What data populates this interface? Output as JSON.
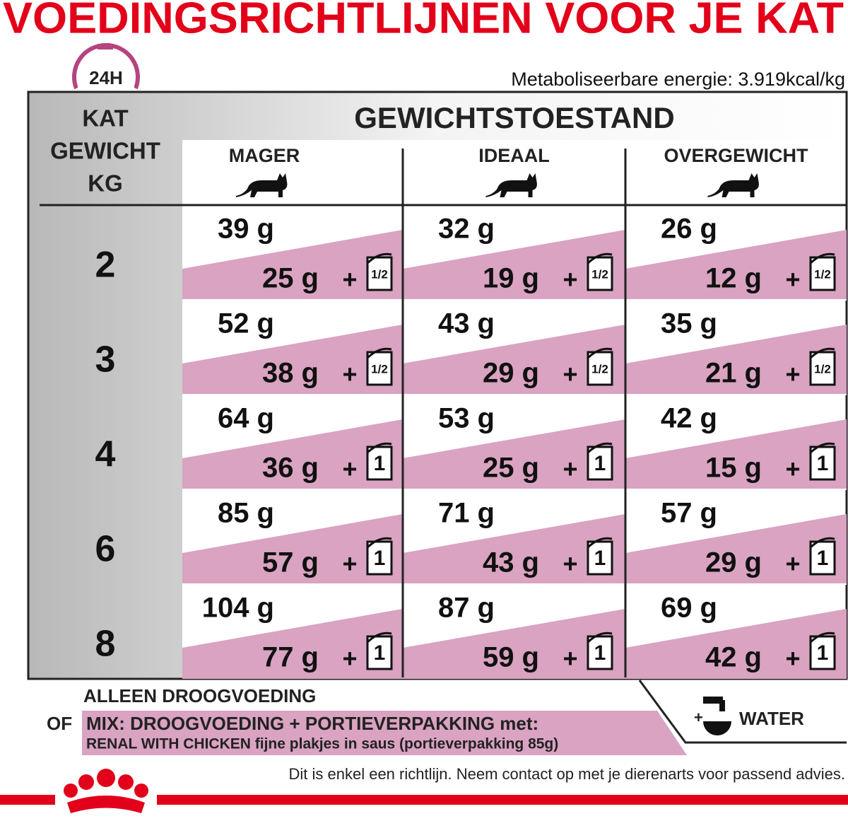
{
  "title": "VOEDINGSRICHTLIJNEN VOOR JE KAT",
  "badge": "24H",
  "energy": "Metaboliseerbare energie: 3.919kcal/kg",
  "table": {
    "weight_header": [
      "KAT",
      "GEWICHT",
      "KG"
    ],
    "group_header": "GEWICHTSTOESTAND",
    "columns": [
      "MAGER",
      "IDEAAL",
      "OVERGEWICHT"
    ],
    "plus": "+",
    "rows": [
      {
        "weight": "2",
        "cells": [
          {
            "dry": "39 g",
            "mix": "25 g",
            "pouch": "1/2"
          },
          {
            "dry": "32 g",
            "mix": "19 g",
            "pouch": "1/2"
          },
          {
            "dry": "26 g",
            "mix": "12 g",
            "pouch": "1/2"
          }
        ]
      },
      {
        "weight": "3",
        "cells": [
          {
            "dry": "52 g",
            "mix": "38 g",
            "pouch": "1/2"
          },
          {
            "dry": "43 g",
            "mix": "29 g",
            "pouch": "1/2"
          },
          {
            "dry": "35 g",
            "mix": "21 g",
            "pouch": "1/2"
          }
        ]
      },
      {
        "weight": "4",
        "cells": [
          {
            "dry": "64 g",
            "mix": "36 g",
            "pouch": "1"
          },
          {
            "dry": "53 g",
            "mix": "25 g",
            "pouch": "1"
          },
          {
            "dry": "42 g",
            "mix": "15 g",
            "pouch": "1"
          }
        ]
      },
      {
        "weight": "6",
        "cells": [
          {
            "dry": "85 g",
            "mix": "57 g",
            "pouch": "1"
          },
          {
            "dry": "71 g",
            "mix": "43 g",
            "pouch": "1"
          },
          {
            "dry": "57 g",
            "mix": "29 g",
            "pouch": "1"
          }
        ]
      },
      {
        "weight": "8",
        "cells": [
          {
            "dry": "104 g",
            "mix": "77 g",
            "pouch": "1"
          },
          {
            "dry": "87 g",
            "mix": "59 g",
            "pouch": "1"
          },
          {
            "dry": "69 g",
            "mix": "42 g",
            "pouch": "1"
          }
        ]
      }
    ]
  },
  "legend": {
    "dry_only": "ALLEEN DROOGVOEDING",
    "or": "OF",
    "mix": "MIX: DROOGVOEDING + PORTIEVERPAKKING met:",
    "mix_detail": "RENAL WITH CHICKEN fijne plakjes in saus (portieverpakking 85g)",
    "water_plus": "+",
    "water": "WATER"
  },
  "footer": "Dit is enkel een richtlijn. Neem contact op met je dierenarts voor passend advies."
}
